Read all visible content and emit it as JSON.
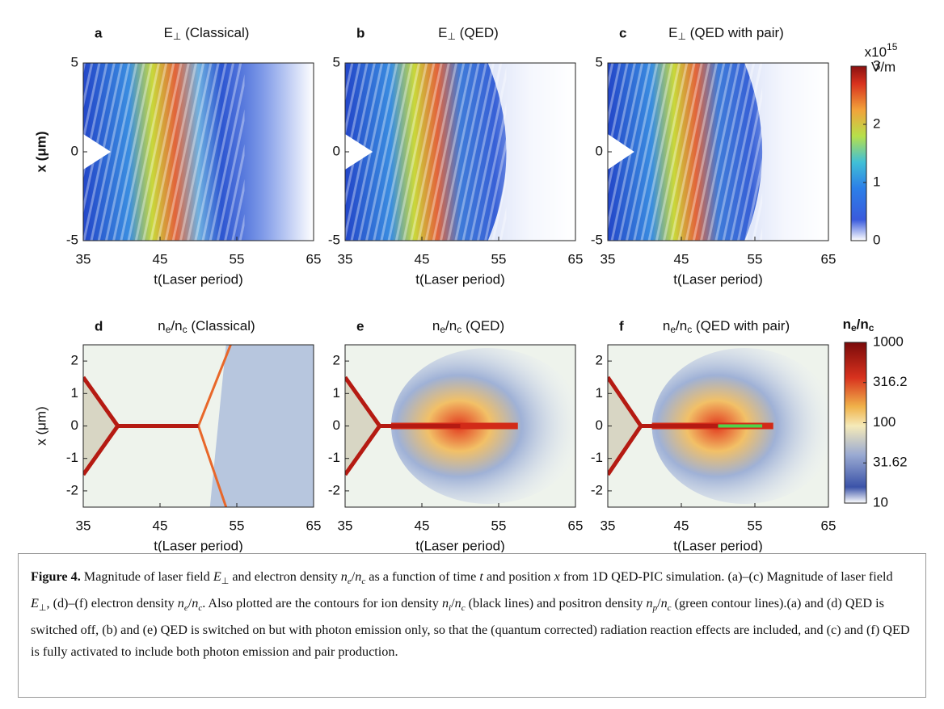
{
  "figure": {
    "panels": [
      {
        "label": "a",
        "title": [
          {
            "t": "E"
          },
          {
            "t": "⊥",
            "sub": true
          },
          {
            "t": " (Classical)"
          }
        ],
        "xlim": [
          35,
          65
        ],
        "xticks": [
          35,
          45,
          55,
          65
        ],
        "ylim": [
          -5,
          5
        ],
        "yticks": [
          5,
          0,
          -5
        ],
        "xlabel": "t(Laser period)",
        "ylabel": "x (μm)"
      },
      {
        "label": "b",
        "title": [
          {
            "t": "E"
          },
          {
            "t": "⊥",
            "sub": true
          },
          {
            "t": " (QED)"
          }
        ],
        "xlim": [
          35,
          65
        ],
        "xticks": [
          35,
          45,
          55,
          65
        ],
        "ylim": [
          -5,
          5
        ],
        "yticks": [
          5,
          0,
          -5
        ],
        "xlabel": "t(Laser period)"
      },
      {
        "label": "c",
        "title": [
          {
            "t": "E"
          },
          {
            "t": "⊥",
            "sub": true
          },
          {
            "t": " (QED with pair)"
          }
        ],
        "xlim": [
          35,
          65
        ],
        "xticks": [
          35,
          45,
          55,
          65
        ],
        "ylim": [
          -5,
          5
        ],
        "yticks": [
          5,
          0,
          -5
        ],
        "xlabel": "t(Laser period)"
      },
      {
        "label": "d",
        "title": [
          {
            "t": "n"
          },
          {
            "t": "e",
            "sub": true
          },
          {
            "t": "/n"
          },
          {
            "t": "c",
            "sub": true
          },
          {
            "t": " (Classical)"
          }
        ],
        "xlim": [
          35,
          65
        ],
        "xticks": [
          35,
          45,
          55,
          65
        ],
        "ylim": [
          -2.5,
          2.5
        ],
        "yticks": [
          2,
          1,
          0,
          -1,
          -2
        ],
        "xlabel": "t(Laser period)",
        "ylabel": "x (μm)"
      },
      {
        "label": "e",
        "title": [
          {
            "t": "n"
          },
          {
            "t": "e",
            "sub": true
          },
          {
            "t": "/n"
          },
          {
            "t": "c",
            "sub": true
          },
          {
            "t": " (QED)"
          }
        ],
        "xlim": [
          35,
          65
        ],
        "xticks": [
          35,
          45,
          55,
          65
        ],
        "ylim": [
          -2.5,
          2.5
        ],
        "yticks": [
          2,
          1,
          0,
          -1,
          -2
        ],
        "xlabel": "t(Laser period)"
      },
      {
        "label": "f",
        "title": [
          {
            "t": "n"
          },
          {
            "t": "e",
            "sub": true
          },
          {
            "t": "/n"
          },
          {
            "t": "c",
            "sub": true
          },
          {
            "t": " (QED with pair)"
          }
        ],
        "xlim": [
          35,
          65
        ],
        "xticks": [
          35,
          45,
          55,
          65
        ],
        "ylim": [
          -2.5,
          2.5
        ],
        "yticks": [
          2,
          1,
          0,
          -1,
          -2
        ],
        "xlabel": "t(Laser period)"
      }
    ],
    "colorbars": [
      {
        "title": [
          {
            "t": "x10"
          },
          {
            "t": "15",
            "sup": true
          }
        ],
        "unit": "V/m",
        "lim": [
          0,
          3
        ],
        "ticks": [
          0,
          1,
          2,
          3
        ],
        "log": false
      },
      {
        "title": [
          {
            "t": "n"
          },
          {
            "t": "e",
            "sub": true
          },
          {
            "t": "/n"
          },
          {
            "t": "c",
            "sub": true
          }
        ],
        "lim": [
          10,
          1000
        ],
        "ticks": [
          10,
          31.62,
          100,
          316.2,
          1000
        ],
        "log": true
      }
    ],
    "caption": [
      {
        "t": "Figure 4.",
        "b": true
      },
      {
        "t": " Magnitude of laser field "
      },
      {
        "t": "E",
        "i": true
      },
      {
        "t": "⊥",
        "sub": true
      },
      {
        "t": " and electron density "
      },
      {
        "t": "n",
        "i": true
      },
      {
        "t": "e",
        "i": true,
        "sub": true
      },
      {
        "t": "/"
      },
      {
        "t": "n",
        "i": true
      },
      {
        "t": "c",
        "i": true,
        "sub": true
      },
      {
        "t": " as a function of time "
      },
      {
        "t": "t",
        "i": true
      },
      {
        "t": " and position "
      },
      {
        "t": "x",
        "i": true
      },
      {
        "t": " from 1D QED-PIC simulation. (a)–(c) Magnitude of laser field "
      },
      {
        "t": "E",
        "i": true
      },
      {
        "t": "⊥",
        "sub": true
      },
      {
        "t": ", (d)–(f) electron density "
      },
      {
        "t": "n",
        "i": true
      },
      {
        "t": "e",
        "i": true,
        "sub": true
      },
      {
        "t": "/"
      },
      {
        "t": "n",
        "i": true
      },
      {
        "t": "c",
        "i": true,
        "sub": true
      },
      {
        "t": ". Also plotted are the contours for ion density "
      },
      {
        "t": "n",
        "i": true
      },
      {
        "t": "i",
        "i": true,
        "sub": true
      },
      {
        "t": "/"
      },
      {
        "t": "n",
        "i": true
      },
      {
        "t": "c",
        "i": true,
        "sub": true
      },
      {
        "t": " (black lines) and positron density "
      },
      {
        "t": "n",
        "i": true
      },
      {
        "t": "p",
        "i": true,
        "sub": true
      },
      {
        "t": "/"
      },
      {
        "t": "n",
        "i": true
      },
      {
        "t": "c",
        "i": true,
        "sub": true
      },
      {
        "t": " (green contour lines).(a) and (d) QED is switched off, (b) and (e) QED is switched on but with photon emission only, so that the (quantum corrected) radiation reaction effects are included, and (c) and (f) QED is fully activated to include both photon emission and pair production."
      }
    ]
  }
}
